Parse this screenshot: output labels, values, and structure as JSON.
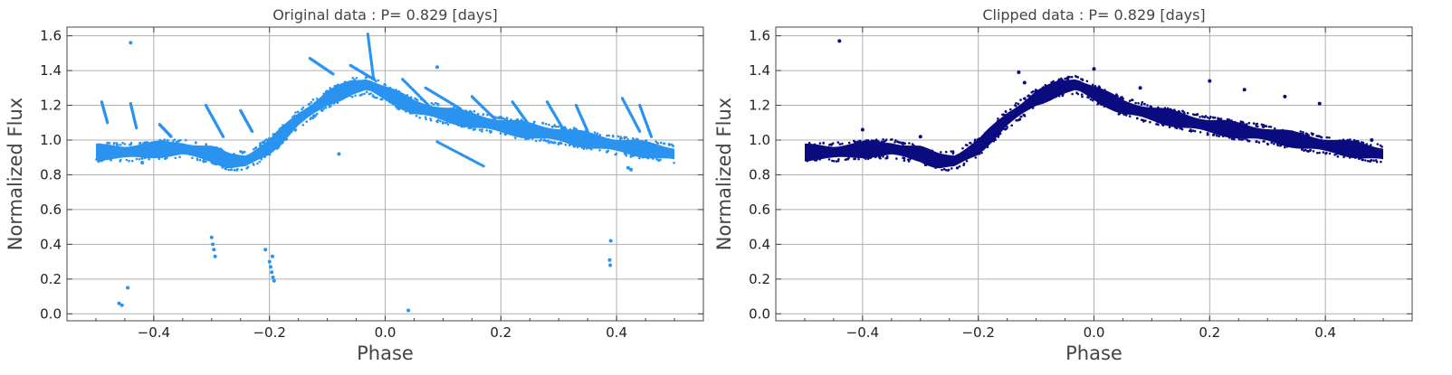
{
  "chart_data": [
    {
      "type": "scatter",
      "title": "Original data : P= 0.829 [days]",
      "xlabel": "Phase",
      "ylabel": "Normalized Flux",
      "xlim": [
        -0.55,
        0.55
      ],
      "ylim": [
        -0.04,
        1.65
      ],
      "xticks": [
        "-0.4",
        "-0.2",
        "0.0",
        "0.2",
        "0.4"
      ],
      "yticks": [
        "0.0",
        "0.2",
        "0.4",
        "0.6",
        "0.8",
        "1.0",
        "1.2",
        "1.4",
        "1.6"
      ],
      "grid": true,
      "color": "#2a93f0",
      "band": [
        [
          -0.5,
          0.93
        ],
        [
          -0.45,
          0.93
        ],
        [
          -0.4,
          0.945
        ],
        [
          -0.35,
          0.95
        ],
        [
          -0.3,
          0.92
        ],
        [
          -0.27,
          0.88
        ],
        [
          -0.24,
          0.88
        ],
        [
          -0.2,
          0.96
        ],
        [
          -0.15,
          1.12
        ],
        [
          -0.1,
          1.24
        ],
        [
          -0.06,
          1.3
        ],
        [
          -0.03,
          1.32
        ],
        [
          0.0,
          1.27
        ],
        [
          0.05,
          1.19
        ],
        [
          0.1,
          1.15
        ],
        [
          0.2,
          1.08
        ],
        [
          0.3,
          1.03
        ],
        [
          0.4,
          0.97
        ],
        [
          0.5,
          0.92
        ]
      ],
      "band_halfwidth": 0.04,
      "streaks": [
        [
          -0.49,
          1.22,
          -0.48,
          1.1
        ],
        [
          -0.44,
          1.21,
          -0.43,
          1.07
        ],
        [
          -0.39,
          1.09,
          -0.37,
          1.02
        ],
        [
          -0.31,
          1.2,
          -0.28,
          1.02
        ],
        [
          -0.25,
          1.17,
          -0.23,
          1.05
        ],
        [
          -0.13,
          1.47,
          -0.09,
          1.38
        ],
        [
          -0.06,
          1.43,
          -0.02,
          1.35
        ],
        [
          -0.03,
          1.61,
          -0.02,
          1.35
        ],
        [
          0.03,
          1.35,
          0.09,
          1.15
        ],
        [
          0.07,
          1.3,
          0.13,
          1.18
        ],
        [
          0.09,
          0.99,
          0.17,
          0.85
        ],
        [
          0.15,
          1.25,
          0.19,
          1.12
        ],
        [
          0.22,
          1.22,
          0.25,
          1.08
        ],
        [
          0.28,
          1.22,
          0.31,
          1.05
        ],
        [
          0.33,
          1.2,
          0.35,
          1.05
        ],
        [
          0.41,
          1.24,
          0.44,
          1.05
        ],
        [
          0.44,
          1.2,
          0.46,
          1.02
        ]
      ],
      "outliers": [
        [
          -0.44,
          1.56
        ],
        [
          -0.46,
          0.06
        ],
        [
          -0.455,
          0.05
        ],
        [
          -0.445,
          0.15
        ],
        [
          -0.3,
          0.44
        ],
        [
          -0.298,
          0.4
        ],
        [
          -0.296,
          0.37
        ],
        [
          -0.294,
          0.33
        ],
        [
          -0.207,
          0.37
        ],
        [
          -0.2,
          0.3
        ],
        [
          -0.198,
          0.27
        ],
        [
          -0.196,
          0.24
        ],
        [
          -0.194,
          0.21
        ],
        [
          -0.192,
          0.19
        ],
        [
          -0.195,
          0.33
        ],
        [
          0.04,
          0.02
        ],
        [
          0.39,
          0.42
        ],
        [
          0.388,
          0.31
        ],
        [
          0.389,
          0.28
        ],
        [
          -0.08,
          0.92
        ],
        [
          0.42,
          0.84
        ],
        [
          0.425,
          0.83
        ],
        [
          -0.42,
          0.87
        ],
        [
          0.37,
          1.0
        ],
        [
          0.09,
          1.42
        ]
      ]
    },
    {
      "type": "scatter",
      "title": "Clipped data : P= 0.829 [days]",
      "xlabel": "Phase",
      "ylabel": "Normalized Flux",
      "xlim": [
        -0.55,
        0.55
      ],
      "ylim": [
        -0.04,
        1.65
      ],
      "xticks": [
        "-0.4",
        "-0.2",
        "0.0",
        "0.2",
        "0.4"
      ],
      "yticks": [
        "0.0",
        "0.2",
        "0.4",
        "0.6",
        "0.8",
        "1.0",
        "1.2",
        "1.4",
        "1.6"
      ],
      "grid": true,
      "color": "#0b0b80",
      "band": [
        [
          -0.5,
          0.93
        ],
        [
          -0.45,
          0.93
        ],
        [
          -0.4,
          0.945
        ],
        [
          -0.35,
          0.95
        ],
        [
          -0.3,
          0.92
        ],
        [
          -0.27,
          0.88
        ],
        [
          -0.24,
          0.88
        ],
        [
          -0.2,
          0.96
        ],
        [
          -0.15,
          1.12
        ],
        [
          -0.1,
          1.24
        ],
        [
          -0.06,
          1.3
        ],
        [
          -0.03,
          1.32
        ],
        [
          0.0,
          1.27
        ],
        [
          0.05,
          1.19
        ],
        [
          0.1,
          1.15
        ],
        [
          0.2,
          1.08
        ],
        [
          0.3,
          1.03
        ],
        [
          0.4,
          0.97
        ],
        [
          0.5,
          0.92
        ]
      ],
      "band_halfwidth": 0.04,
      "streaks": [],
      "outliers": [
        [
          -0.44,
          1.57
        ],
        [
          -0.4,
          1.06
        ],
        [
          -0.3,
          1.02
        ],
        [
          -0.13,
          1.39
        ],
        [
          -0.12,
          1.33
        ],
        [
          0.0,
          1.41
        ],
        [
          0.08,
          1.3
        ],
        [
          0.2,
          1.34
        ],
        [
          0.26,
          1.29
        ],
        [
          0.33,
          1.25
        ],
        [
          0.39,
          1.21
        ],
        [
          -0.15,
          1.12
        ],
        [
          0.48,
          1.0
        ],
        [
          -0.46,
          0.95
        ],
        [
          -0.33,
          0.98
        ],
        [
          0.43,
          0.99
        ]
      ]
    }
  ]
}
